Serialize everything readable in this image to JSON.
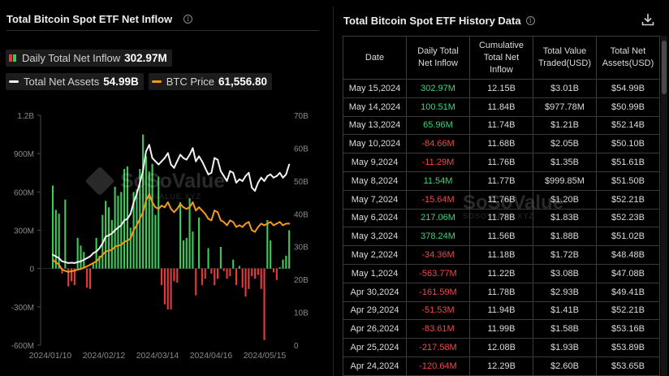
{
  "left": {
    "title": "Total Bitcoin Spot ETF Net Inflow",
    "legend": {
      "inflow_label": "Daily Total Net Inflow",
      "inflow_value": "302.97M",
      "assets_label": "Total Net Assets",
      "assets_value": "54.99B",
      "btc_label": "BTC Price",
      "btc_value": "61,556.80"
    },
    "watermark": "SoSoValue",
    "watermark_sub": "SOSOVALUE.XYZ"
  },
  "right": {
    "title": "Total Bitcoin Spot ETF History Data",
    "columns": [
      "Date",
      "Daily Total\nNet Inflow",
      "Cumulative\nTotal Net\nInflow",
      "Total Value\nTraded(USD)",
      "Total Net\nAssets(USD)"
    ],
    "rows": [
      {
        "date": "May 15,2024",
        "inflow": "302.97M",
        "sign": "pos",
        "cum": "12.15B",
        "traded": "$3.01B",
        "assets": "$54.99B"
      },
      {
        "date": "May 14,2024",
        "inflow": "100.51M",
        "sign": "pos",
        "cum": "11.84B",
        "traded": "$977.78M",
        "assets": "$50.99B"
      },
      {
        "date": "May 13,2024",
        "inflow": "65.96M",
        "sign": "pos",
        "cum": "11.74B",
        "traded": "$1.21B",
        "assets": "$52.14B"
      },
      {
        "date": "May 10,2024",
        "inflow": "-84.66M",
        "sign": "neg",
        "cum": "11.68B",
        "traded": "$2.05B",
        "assets": "$50.10B"
      },
      {
        "date": "May 9,2024",
        "inflow": "-11.29M",
        "sign": "neg",
        "cum": "11.76B",
        "traded": "$1.35B",
        "assets": "$51.61B"
      },
      {
        "date": "May 8,2024",
        "inflow": "11.54M",
        "sign": "pos",
        "cum": "11.77B",
        "traded": "$999.85M",
        "assets": "$51.50B"
      },
      {
        "date": "May 7,2024",
        "inflow": "-15.64M",
        "sign": "neg",
        "cum": "11.76B",
        "traded": "$1.20B",
        "assets": "$52.21B"
      },
      {
        "date": "May 6,2024",
        "inflow": "217.06M",
        "sign": "pos",
        "cum": "11.78B",
        "traded": "$1.83B",
        "assets": "$52.23B"
      },
      {
        "date": "May 3,2024",
        "inflow": "378.24M",
        "sign": "pos",
        "cum": "11.56B",
        "traded": "$1.88B",
        "assets": "$51.02B"
      },
      {
        "date": "May 2,2024",
        "inflow": "-34.36M",
        "sign": "neg",
        "cum": "11.18B",
        "traded": "$1.72B",
        "assets": "$48.48B"
      },
      {
        "date": "May 1,2024",
        "inflow": "-563.77M",
        "sign": "neg",
        "cum": "11.22B",
        "traded": "$3.08B",
        "assets": "$47.08B"
      },
      {
        "date": "Apr 30,2024",
        "inflow": "-161.59M",
        "sign": "neg",
        "cum": "11.78B",
        "traded": "$2.93B",
        "assets": "$49.41B"
      },
      {
        "date": "Apr 29,2024",
        "inflow": "-51.53M",
        "sign": "neg",
        "cum": "11.94B",
        "traded": "$1.41B",
        "assets": "$52.21B"
      },
      {
        "date": "Apr 26,2024",
        "inflow": "-83.61M",
        "sign": "neg",
        "cum": "11.99B",
        "traded": "$1.58B",
        "assets": "$53.16B"
      },
      {
        "date": "Apr 25,2024",
        "inflow": "-217.58M",
        "sign": "neg",
        "cum": "12.08B",
        "traded": "$1.93B",
        "assets": "$53.89B"
      },
      {
        "date": "Apr 24,2024",
        "inflow": "-120.64M",
        "sign": "neg",
        "cum": "12.29B",
        "traded": "$2.60B",
        "assets": "$53.65B"
      }
    ],
    "watermark": "SoSoValue",
    "watermark_sub": "SOSOVALUE.XYZ"
  },
  "colors": {
    "inflow_pos": "#3ec95c",
    "inflow_neg": "#e83a3a",
    "assets_line": "#f2f2f2",
    "btc_line": "#f39a1a",
    "axis_text": "#8a8a8a"
  },
  "icons": [
    "info-icon",
    "download-icon"
  ],
  "chart_data": {
    "type": "bar",
    "x_ticks": [
      "2024/01/10",
      "2024/02/12",
      "2024/03/14",
      "2024/04/16",
      "2024/05/15"
    ],
    "y_left_ticks": [
      "1.2B",
      "900M",
      "600M",
      "300M",
      "0",
      "-300M",
      "-600M"
    ],
    "y_left_range": [
      -600,
      1200
    ],
    "y_left_unit": "M",
    "y_right_ticks": [
      "70B",
      "60B",
      "50B",
      "40B",
      "30B",
      "20B",
      "10B",
      "0"
    ],
    "y_right_range": [
      0,
      70
    ],
    "y_right_unit": "B",
    "legend_position": "top-left",
    "series": [
      {
        "name": "Daily Total Net Inflow",
        "type": "bar",
        "values": [
          650,
          460,
          430,
          -40,
          540,
          -140,
          -100,
          -130,
          240,
          180,
          130,
          -150,
          -160,
          40,
          240,
          100,
          420,
          530,
          480,
          380,
          640,
          570,
          600,
          780,
          800,
          320,
          600,
          620,
          780,
          1050,
          880,
          760,
          820,
          420,
          720,
          -130,
          -280,
          -320,
          -320,
          -100,
          -110,
          520,
          220,
          240,
          550,
          290,
          -210,
          400,
          -130,
          -80,
          160,
          -40,
          -130,
          -80,
          170,
          -20,
          -80,
          -60,
          70,
          -130,
          20,
          -150,
          -220,
          -160,
          -60,
          -80,
          -50,
          -160,
          -560,
          380,
          220,
          -30,
          -90,
          10,
          70,
          100,
          300
        ]
      },
      {
        "name": "Total Net Assets",
        "type": "line",
        "values": [
          27.5,
          27.0,
          26.5,
          25.5,
          25.3,
          25.0,
          25.1,
          25.0,
          25.3,
          25.5,
          26.0,
          26.5,
          27.0,
          28.0,
          28.5,
          29.5,
          31.0,
          33.0,
          33.5,
          34.0,
          35.0,
          35.8,
          36.5,
          38.0,
          38.5,
          40.0,
          43.5,
          46.0,
          49.5,
          53.0,
          59.0,
          61.0,
          57.0,
          56.0,
          55.0,
          56.0,
          57.0,
          58.5,
          55.0,
          54.0,
          56.0,
          58.0,
          57.0,
          56.5,
          58.0,
          60.0,
          56.0,
          57.5,
          56.0,
          54.0,
          52.0,
          52.5,
          57.0,
          56.5,
          53.0,
          51.5,
          50.0,
          53.0,
          52.5,
          49.5,
          50.5,
          50.0,
          51.5,
          52.5,
          48.0,
          47.0,
          49.5,
          51.0,
          50.0,
          51.5,
          52.0,
          51.0,
          51.5,
          52.5,
          51.0,
          52.0,
          55.0
        ]
      },
      {
        "name": "BTC Price",
        "type": "line",
        "values": [
          26.0,
          25.2,
          24.5,
          23.0,
          22.6,
          22.3,
          22.5,
          22.7,
          23.0,
          23.2,
          23.6,
          24.0,
          24.5,
          25.0,
          25.5,
          26.5,
          27.5,
          28.5,
          28.8,
          29.0,
          30.0,
          30.3,
          30.5,
          31.5,
          31.8,
          32.5,
          35.0,
          36.5,
          38.5,
          40.5,
          44.0,
          46.0,
          43.5,
          42.0,
          41.5,
          42.5,
          42.0,
          43.5,
          41.5,
          40.5,
          41.5,
          43.0,
          42.0,
          41.5,
          42.0,
          43.5,
          41.0,
          42.0,
          41.0,
          40.0,
          38.5,
          38.0,
          41.0,
          40.5,
          38.0,
          37.5,
          36.5,
          38.0,
          37.5,
          36.0,
          36.5,
          36.0,
          37.0,
          37.5,
          35.0,
          34.5,
          36.0,
          37.0,
          36.5,
          37.0,
          37.5,
          36.5,
          37.0,
          37.5,
          36.5,
          37.0,
          37.0
        ]
      }
    ]
  }
}
